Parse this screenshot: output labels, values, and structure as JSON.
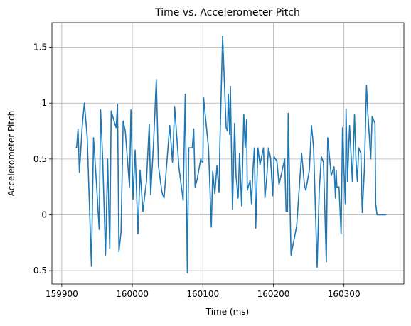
{
  "chart_data": {
    "type": "line",
    "title": "Time vs. Accelerometer Pitch",
    "x_label": "Time (ms)",
    "y_label": "Accelerometer Pitch",
    "x": [
      159919,
      159921,
      159923,
      159925,
      159929,
      159932,
      159936,
      159942,
      159945,
      159949,
      159953,
      159955,
      159958,
      159962,
      159965,
      159968,
      159970,
      159975,
      159977,
      159979,
      159981,
      159984,
      159987,
      159990,
      159996,
      159998,
      160001,
      160004,
      160008,
      160011,
      160015,
      160020,
      160024,
      160026,
      160030,
      160034,
      160037,
      160042,
      160045,
      160053,
      160057,
      160060,
      160066,
      160072,
      160075,
      160078,
      160080,
      160083,
      160085,
      160087,
      160089,
      160092,
      160097,
      160098,
      160100,
      160101,
      160108,
      160112,
      160114,
      160117,
      160120,
      160123,
      160124,
      160128,
      160133,
      160135,
      160136,
      160138,
      160139,
      160142,
      160145,
      160147,
      160150,
      160152,
      160155,
      160158,
      160160,
      160162,
      160163,
      160167,
      160169,
      160171,
      160173,
      160175,
      160178,
      160181,
      160186,
      160188,
      160191,
      160193,
      160196,
      160199,
      160201,
      160205,
      160208,
      160216,
      160218,
      160220,
      160221,
      160225,
      160233,
      160240,
      160244,
      160246,
      160251,
      160254,
      160257,
      160262,
      160265,
      160268,
      160271,
      160275,
      160277,
      160282,
      160286,
      160288,
      160289,
      160290,
      160293,
      160296,
      160298,
      160300,
      160302,
      160303,
      160305,
      160308,
      160312,
      160315,
      160317,
      160319,
      160321,
      160324,
      160326,
      160329,
      160332,
      160334,
      160338,
      160340,
      160342,
      160344,
      160345,
      160347,
      160352,
      160360
    ],
    "series": [
      {
        "name": "Accelerometer Pitch",
        "color": "#1f77b4",
        "values": [
          0.6,
          0.6,
          0.77,
          0.38,
          0.8,
          1.0,
          0.7,
          -0.46,
          0.69,
          0.3,
          -0.13,
          0.94,
          0.5,
          -0.36,
          0.5,
          -0.3,
          0.93,
          0.82,
          0.78,
          0.99,
          -0.33,
          -0.15,
          0.84,
          0.75,
          0.25,
          0.94,
          0.14,
          0.58,
          -0.17,
          0.4,
          0.03,
          0.3,
          0.81,
          0.18,
          0.63,
          1.21,
          0.44,
          0.2,
          0.15,
          0.8,
          0.47,
          0.97,
          0.43,
          0.13,
          1.08,
          -0.52,
          0.6,
          0.6,
          0.6,
          0.77,
          0.25,
          0.32,
          0.5,
          0.48,
          0.47,
          1.05,
          0.6,
          -0.11,
          0.39,
          0.19,
          0.44,
          0.2,
          0.6,
          1.6,
          0.78,
          0.75,
          1.08,
          0.72,
          1.15,
          0.05,
          0.82,
          0.35,
          0.15,
          0.55,
          0.08,
          0.9,
          0.6,
          0.85,
          0.22,
          0.31,
          0.1,
          0.4,
          0.6,
          -0.12,
          0.6,
          0.45,
          0.6,
          0.15,
          0.37,
          0.6,
          0.51,
          0.17,
          0.52,
          0.48,
          0.27,
          0.5,
          0.03,
          0.03,
          0.91,
          -0.36,
          -0.1,
          0.55,
          0.27,
          0.22,
          0.4,
          0.8,
          0.6,
          -0.47,
          0.22,
          0.52,
          0.47,
          -0.42,
          0.69,
          0.35,
          0.43,
          0.15,
          0.4,
          0.25,
          0.25,
          -0.17,
          0.78,
          0.4,
          0.1,
          0.95,
          0.3,
          0.8,
          0.3,
          0.9,
          0.5,
          0.3,
          0.6,
          0.55,
          0.02,
          0.4,
          1.16,
          0.9,
          0.5,
          0.88,
          0.85,
          0.82,
          0.1,
          0,
          0,
          0
        ]
      }
    ],
    "xlim": [
      159886,
      160385
    ],
    "xticks": [
      159900,
      160000,
      160100,
      160200,
      160300
    ],
    "ylim": [
      -0.62,
      1.72
    ],
    "yticks": [
      -0.5,
      0.0,
      0.5,
      1.0,
      1.5
    ],
    "grid": true
  }
}
